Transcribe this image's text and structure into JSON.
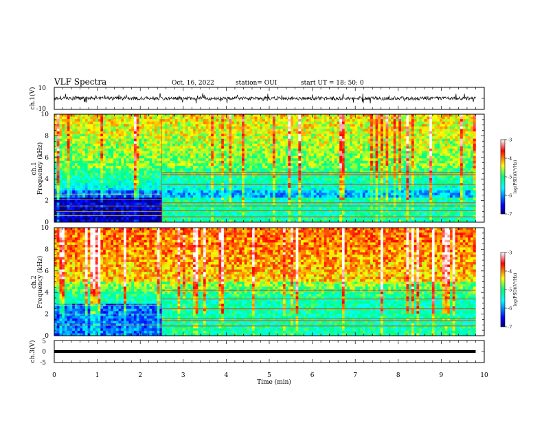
{
  "header": {
    "title": "VLF Spectra",
    "date": "Oct. 16, 2022",
    "station": "station= OUI",
    "start_ut": "start  UT =   18: 50: 0"
  },
  "chart_data": [
    {
      "type": "line",
      "name": "ch1-waveform",
      "ylabel": "ch.1(V)",
      "ylim": [
        -10,
        10
      ],
      "yticks": [
        "10",
        "-10"
      ],
      "xlim": [
        0,
        10
      ],
      "trace_extent_min": [
        0,
        9.8
      ],
      "trace_baseline_v": 0
    },
    {
      "type": "heatmap",
      "name": "ch1-spectrogram",
      "ylabel": "ch.1\nFrequency (kHz)",
      "ylim": [
        0,
        10
      ],
      "yticks": [
        "0",
        "2",
        "4",
        "6",
        "8",
        "10"
      ],
      "xlim": [
        0,
        10
      ],
      "data_extent_min": [
        0,
        9.8
      ],
      "transition_time_min": 2.5,
      "colorbar": {
        "label": "log(PSD)(V²/Hz)",
        "range": [
          -7,
          -3
        ],
        "ticks": [
          "-3",
          "-4",
          "-5",
          "-6",
          "-7"
        ]
      },
      "lines_before_khz": [
        0.6,
        1.0,
        1.5,
        2.1,
        2.6
      ],
      "lines_after_khz": [
        0.5,
        1.1,
        1.5,
        1.8,
        3.5,
        4.4,
        4.6
      ]
    },
    {
      "type": "heatmap",
      "name": "ch2-spectrogram",
      "ylabel": "ch.2\nFrequency (kHz)",
      "ylim": [
        0,
        10
      ],
      "yticks": [
        "0",
        "2",
        "4",
        "6",
        "8",
        "10"
      ],
      "xlim": [
        0,
        10
      ],
      "data_extent_min": [
        0,
        9.8
      ],
      "transition_time_min": 2.5,
      "colorbar": {
        "label": "log(PSD)(V²/Hz)",
        "range": [
          -7,
          -3
        ],
        "ticks": [
          "-3",
          "-4",
          "-5",
          "-6",
          "-7"
        ]
      },
      "lines_before_khz": [
        1.0,
        2.0,
        2.8
      ],
      "lines_after_khz": [
        0.9,
        1.4,
        1.6,
        2.5,
        3.4,
        4.2
      ]
    },
    {
      "type": "line",
      "name": "ch3-signal",
      "ylabel": "ch.3(V)",
      "ylim": [
        -5,
        5
      ],
      "yticks": [
        "5",
        "0",
        "-5"
      ],
      "xlim": [
        0,
        10
      ],
      "trace_extent_min": [
        0,
        9.8
      ],
      "trace_value_v": 0
    }
  ],
  "xaxis": {
    "label": "Time (min)",
    "ticks": [
      "0",
      "1",
      "2",
      "3",
      "4",
      "5",
      "6",
      "7",
      "8",
      "9",
      "10"
    ]
  },
  "colors": {
    "low": "#00007f",
    "mid": "#00ff80",
    "high": "#ff0000",
    "frame": "#000000"
  }
}
